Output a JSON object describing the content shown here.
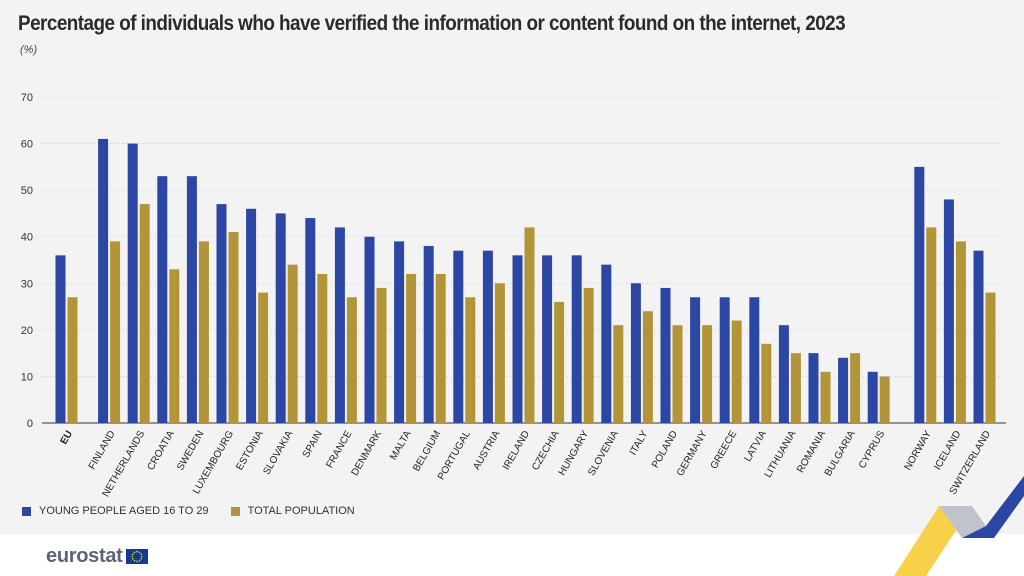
{
  "title": "Percentage of individuals who have verified the information or content found on the internet, 2023",
  "unit": "(%)",
  "colors": {
    "young": "#2c46a3",
    "total": "#b29539",
    "grid": "#d6d6d6",
    "axis": "#333333"
  },
  "legend": {
    "young_label": "YOUNG PEOPLE AGED 16 TO 29",
    "total_label": "TOTAL POPULATION"
  },
  "logo": {
    "text": "eurostat",
    "flag_icon": "eu-flag-icon"
  },
  "chart_data": {
    "type": "bar",
    "title": "Percentage of individuals who have verified the information or content found on the internet, 2023",
    "ylabel": "(%)",
    "xlabel": "",
    "ylim": [
      0,
      70
    ],
    "yticks": [
      0,
      10,
      20,
      30,
      40,
      50,
      60,
      70
    ],
    "grid": true,
    "legend_position": "bottom-left",
    "categories": [
      "EU",
      "FINLAND",
      "NETHERLANDS",
      "CROATIA",
      "SWEDEN",
      "LUXEMBOURG",
      "ESTONIA",
      "SLOVAKIA",
      "SPAIN",
      "FRANCE",
      "DENMARK",
      "MALTA",
      "BELGIUM",
      "PORTUGAL",
      "AUSTRIA",
      "IRELAND",
      "CZECHIA",
      "HUNGARY",
      "SLOVENIA",
      "ITALY",
      "POLAND",
      "GERMANY",
      "GREECE",
      "LATVIA",
      "LITHUANIA",
      "ROMANIA",
      "BULGARIA",
      "CYPRUS",
      "NORWAY",
      "ICELAND",
      "SWITZERLAND"
    ],
    "series": [
      {
        "name": "YOUNG PEOPLE AGED 16 TO 29",
        "values": [
          36,
          61,
          60,
          53,
          53,
          47,
          46,
          45,
          44,
          42,
          40,
          39,
          38,
          37,
          37,
          36,
          36,
          36,
          34,
          30,
          29,
          27,
          27,
          27,
          21,
          15,
          14,
          11,
          55,
          48,
          37
        ]
      },
      {
        "name": "TOTAL POPULATION",
        "values": [
          27,
          39,
          47,
          33,
          39,
          41,
          28,
          34,
          32,
          27,
          29,
          32,
          32,
          27,
          30,
          42,
          26,
          29,
          21,
          24,
          21,
          21,
          22,
          17,
          15,
          11,
          15,
          10,
          42,
          39,
          28
        ]
      }
    ]
  }
}
